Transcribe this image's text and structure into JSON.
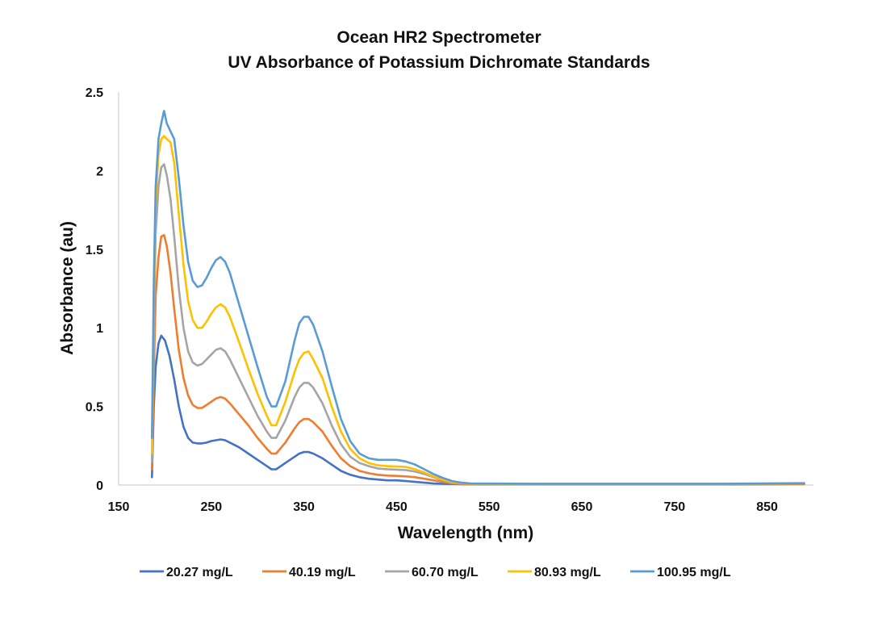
{
  "chart_data": {
    "type": "line",
    "title": "Ocean HR2 Spectrometer",
    "subtitle": "UV Absorbance of Potassium Dichromate Standards",
    "xlabel": "Wavelength (nm)",
    "ylabel": "Absorbance (au)",
    "xlim": [
      150,
      900
    ],
    "ylim": [
      0,
      2.5
    ],
    "xticks": [
      "150",
      "250",
      "350",
      "450",
      "550",
      "650",
      "750",
      "850"
    ],
    "yticks": [
      "0",
      "0.5",
      "1",
      "1.5",
      "2",
      "2.5"
    ],
    "legend_position": "bottom",
    "grid": false,
    "series": [
      {
        "name": "20.27 mg/L",
        "color": "#4472C4",
        "x": [
          186,
          188,
          190,
          193,
          196,
          200,
          205,
          210,
          215,
          220,
          225,
          230,
          235,
          240,
          245,
          250,
          255,
          260,
          265,
          270,
          280,
          290,
          300,
          310,
          315,
          320,
          330,
          340,
          345,
          350,
          355,
          360,
          370,
          380,
          390,
          400,
          410,
          420,
          430,
          440,
          450,
          460,
          470,
          480,
          490,
          500,
          520,
          550,
          600,
          700,
          800,
          890
        ],
        "y": [
          0.05,
          0.5,
          0.75,
          0.9,
          0.95,
          0.92,
          0.82,
          0.67,
          0.5,
          0.37,
          0.3,
          0.27,
          0.265,
          0.265,
          0.27,
          0.28,
          0.285,
          0.29,
          0.285,
          0.27,
          0.24,
          0.2,
          0.16,
          0.12,
          0.1,
          0.1,
          0.14,
          0.18,
          0.2,
          0.21,
          0.21,
          0.2,
          0.17,
          0.13,
          0.09,
          0.065,
          0.05,
          0.04,
          0.035,
          0.03,
          0.03,
          0.025,
          0.02,
          0.015,
          0.01,
          0.008,
          0.005,
          0.004,
          0.004,
          0.004,
          0.004,
          0.006
        ]
      },
      {
        "name": "40.19 mg/L",
        "color": "#ED7D31",
        "x": [
          186,
          188,
          190,
          193,
          196,
          199,
          202,
          206,
          210,
          215,
          220,
          225,
          230,
          235,
          240,
          245,
          250,
          255,
          260,
          265,
          270,
          280,
          290,
          300,
          310,
          315,
          320,
          330,
          340,
          345,
          350,
          355,
          360,
          370,
          380,
          390,
          400,
          410,
          420,
          430,
          440,
          450,
          460,
          470,
          480,
          490,
          500,
          510,
          520,
          530,
          550,
          600,
          700,
          800,
          890
        ],
        "y": [
          0.1,
          0.7,
          1.2,
          1.45,
          1.58,
          1.59,
          1.52,
          1.35,
          1.12,
          0.86,
          0.68,
          0.57,
          0.51,
          0.49,
          0.49,
          0.51,
          0.53,
          0.55,
          0.56,
          0.55,
          0.52,
          0.45,
          0.38,
          0.3,
          0.23,
          0.2,
          0.2,
          0.27,
          0.36,
          0.4,
          0.42,
          0.42,
          0.4,
          0.34,
          0.25,
          0.17,
          0.12,
          0.09,
          0.075,
          0.065,
          0.06,
          0.058,
          0.055,
          0.05,
          0.04,
          0.03,
          0.02,
          0.01,
          0.007,
          0.005,
          0.005,
          0.005,
          0.005,
          0.005,
          0.008
        ]
      },
      {
        "name": "60.70 mg/L",
        "color": "#A5A5A5",
        "x": [
          186,
          188,
          190,
          193,
          196,
          199,
          202,
          206,
          210,
          215,
          220,
          225,
          230,
          235,
          240,
          245,
          250,
          255,
          260,
          265,
          270,
          280,
          290,
          300,
          310,
          315,
          320,
          330,
          340,
          345,
          350,
          355,
          360,
          370,
          380,
          390,
          400,
          410,
          420,
          430,
          440,
          450,
          460,
          470,
          480,
          490,
          500,
          510,
          520,
          530,
          550,
          600,
          700,
          800,
          890
        ],
        "y": [
          0.15,
          1.0,
          1.6,
          1.9,
          2.02,
          2.04,
          1.97,
          1.82,
          1.58,
          1.25,
          1.0,
          0.85,
          0.78,
          0.76,
          0.77,
          0.8,
          0.83,
          0.86,
          0.87,
          0.85,
          0.8,
          0.68,
          0.56,
          0.44,
          0.34,
          0.3,
          0.3,
          0.41,
          0.56,
          0.62,
          0.65,
          0.65,
          0.62,
          0.52,
          0.38,
          0.26,
          0.18,
          0.14,
          0.12,
          0.105,
          0.1,
          0.098,
          0.095,
          0.085,
          0.07,
          0.05,
          0.03,
          0.015,
          0.01,
          0.007,
          0.006,
          0.006,
          0.006,
          0.006,
          0.009
        ]
      },
      {
        "name": "80.93 mg/L",
        "color": "#FFC000",
        "x": [
          186,
          188,
          190,
          193,
          196,
          199,
          202,
          206,
          210,
          215,
          220,
          225,
          230,
          235,
          240,
          245,
          250,
          255,
          260,
          265,
          270,
          280,
          290,
          300,
          310,
          315,
          320,
          330,
          340,
          345,
          350,
          355,
          360,
          370,
          380,
          390,
          400,
          410,
          420,
          430,
          440,
          450,
          460,
          470,
          480,
          490,
          500,
          510,
          520,
          530,
          550,
          600,
          700,
          800,
          890
        ],
        "y": [
          0.2,
          1.2,
          1.8,
          2.1,
          2.2,
          2.22,
          2.2,
          2.18,
          2.05,
          1.72,
          1.4,
          1.17,
          1.05,
          1.0,
          1.0,
          1.04,
          1.09,
          1.13,
          1.15,
          1.13,
          1.07,
          0.91,
          0.74,
          0.58,
          0.44,
          0.38,
          0.38,
          0.53,
          0.72,
          0.8,
          0.84,
          0.85,
          0.8,
          0.68,
          0.5,
          0.34,
          0.23,
          0.17,
          0.14,
          0.125,
          0.12,
          0.118,
          0.115,
          0.1,
          0.08,
          0.055,
          0.035,
          0.018,
          0.012,
          0.008,
          0.007,
          0.007,
          0.007,
          0.007,
          0.01
        ]
      },
      {
        "name": "100.95 mg/L",
        "color": "#5B9BD5",
        "x": [
          186,
          188,
          190,
          193,
          196,
          199,
          202,
          206,
          210,
          215,
          220,
          225,
          230,
          235,
          240,
          245,
          250,
          255,
          260,
          265,
          270,
          280,
          290,
          300,
          310,
          315,
          320,
          330,
          340,
          345,
          350,
          355,
          360,
          370,
          380,
          390,
          400,
          410,
          420,
          430,
          440,
          450,
          460,
          470,
          480,
          490,
          500,
          510,
          520,
          530,
          550,
          600,
          700,
          800,
          890
        ],
        "y": [
          0.3,
          1.3,
          1.9,
          2.2,
          2.3,
          2.38,
          2.3,
          2.25,
          2.2,
          1.95,
          1.65,
          1.42,
          1.3,
          1.26,
          1.27,
          1.32,
          1.38,
          1.43,
          1.45,
          1.42,
          1.35,
          1.15,
          0.95,
          0.75,
          0.56,
          0.5,
          0.5,
          0.66,
          0.92,
          1.03,
          1.07,
          1.07,
          1.02,
          0.85,
          0.63,
          0.42,
          0.28,
          0.2,
          0.17,
          0.16,
          0.16,
          0.16,
          0.15,
          0.13,
          0.1,
          0.07,
          0.045,
          0.025,
          0.015,
          0.01,
          0.009,
          0.008,
          0.008,
          0.008,
          0.012
        ]
      }
    ]
  }
}
